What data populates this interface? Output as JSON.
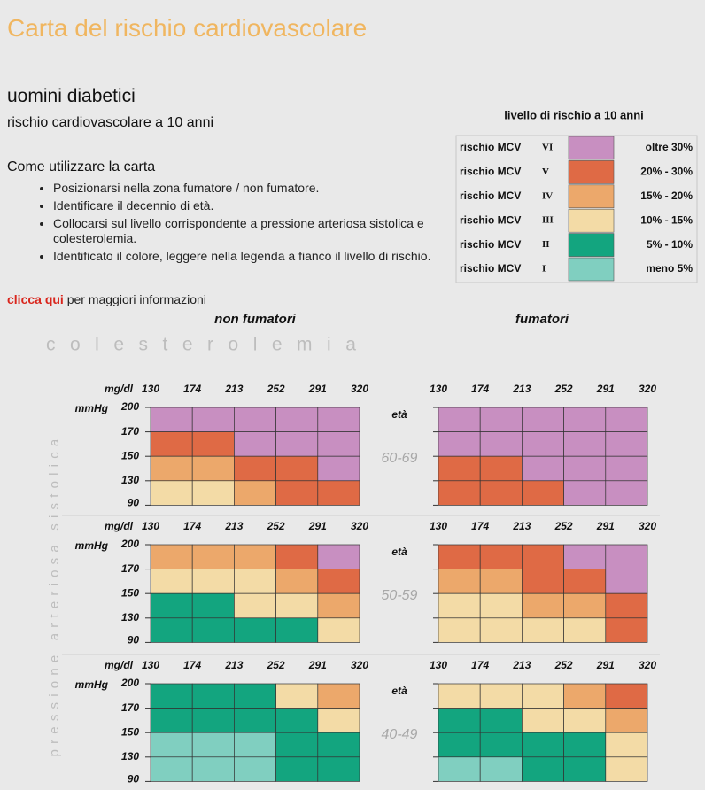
{
  "header": {
    "title": "Carta del rischio cardiovascolare"
  },
  "subtitle": "uomini diabetici",
  "subtitle2": "rischio cardiovascolare a 10 anni",
  "instructions": {
    "title": "Come utilizzare la carta",
    "items": [
      "Posizionarsi nella zona fumatore / non fumatore.",
      "Identificare il decennio di età.",
      "Collocarsi sul livello corrispondente a pressione arteriosa sistolica e colesterolemia.",
      "Identificato il colore, leggere nella legenda a fianco il livello di rischio."
    ]
  },
  "link": {
    "label": "clicca qui",
    "text": "per maggiori informazioni"
  },
  "legend": {
    "title": "livello di rischio a 10 anni",
    "levels": [
      {
        "label": "rischio MCV",
        "numeral": "VI",
        "range": "oltre  30%",
        "color": "#c88fc1"
      },
      {
        "label": "rischio MCV",
        "numeral": "V",
        "range": "20% - 30%",
        "color": "#df6a45"
      },
      {
        "label": "rischio MCV",
        "numeral": "IV",
        "range": "15% - 20%",
        "color": "#eca86b"
      },
      {
        "label": "rischio MCV",
        "numeral": "III",
        "range": "10% - 15%",
        "color": "#f3dba6"
      },
      {
        "label": "rischio MCV",
        "numeral": "II",
        "range": "5% - 10%",
        "color": "#13a57f"
      },
      {
        "label": "rischio MCV",
        "numeral": "I",
        "range": "meno  5%",
        "color": "#80cfc0"
      }
    ]
  },
  "chart": {
    "groups": [
      "non fumatori",
      "fumatori"
    ],
    "x_title": "colesterolemia",
    "y_title": "pressione arteriosa sistolica",
    "x_unit": "mg/dl",
    "y_unit": "mmHg",
    "age_label": "età",
    "x_ticks": [
      130,
      174,
      213,
      252,
      291,
      320
    ],
    "y_ticks": [
      200,
      170,
      150,
      130,
      90
    ],
    "panels": [
      {
        "age": "60-69",
        "non_smokers": [
          [
            "VI",
            "VI",
            "VI",
            "VI",
            "VI"
          ],
          [
            "V",
            "V",
            "VI",
            "VI",
            "VI"
          ],
          [
            "IV",
            "IV",
            "V",
            "V",
            "VI"
          ],
          [
            "III",
            "III",
            "IV",
            "V",
            "V"
          ]
        ],
        "smokers": [
          [
            "VI",
            "VI",
            "VI",
            "VI",
            "VI"
          ],
          [
            "VI",
            "VI",
            "VI",
            "VI",
            "VI"
          ],
          [
            "V",
            "V",
            "VI",
            "VI",
            "VI"
          ],
          [
            "V",
            "V",
            "V",
            "VI",
            "VI"
          ]
        ]
      },
      {
        "age": "50-59",
        "non_smokers": [
          [
            "IV",
            "IV",
            "IV",
            "V",
            "VI"
          ],
          [
            "III",
            "III",
            "III",
            "IV",
            "V"
          ],
          [
            "II",
            "II",
            "III",
            "III",
            "IV"
          ],
          [
            "II",
            "II",
            "II",
            "II",
            "III"
          ]
        ],
        "smokers": [
          [
            "V",
            "V",
            "V",
            "VI",
            "VI"
          ],
          [
            "IV",
            "IV",
            "V",
            "V",
            "VI"
          ],
          [
            "III",
            "III",
            "IV",
            "IV",
            "V"
          ],
          [
            "III",
            "III",
            "III",
            "III",
            "V"
          ]
        ]
      },
      {
        "age": "40-49",
        "non_smokers": [
          [
            "II",
            "II",
            "II",
            "III",
            "IV"
          ],
          [
            "II",
            "II",
            "II",
            "II",
            "III"
          ],
          [
            "I",
            "I",
            "I",
            "II",
            "II"
          ],
          [
            "I",
            "I",
            "I",
            "II",
            "II"
          ]
        ],
        "smokers": [
          [
            "III",
            "III",
            "III",
            "IV",
            "V"
          ],
          [
            "II",
            "II",
            "III",
            "III",
            "IV"
          ],
          [
            "II",
            "II",
            "II",
            "II",
            "III"
          ],
          [
            "I",
            "I",
            "II",
            "II",
            "III"
          ]
        ]
      }
    ]
  }
}
